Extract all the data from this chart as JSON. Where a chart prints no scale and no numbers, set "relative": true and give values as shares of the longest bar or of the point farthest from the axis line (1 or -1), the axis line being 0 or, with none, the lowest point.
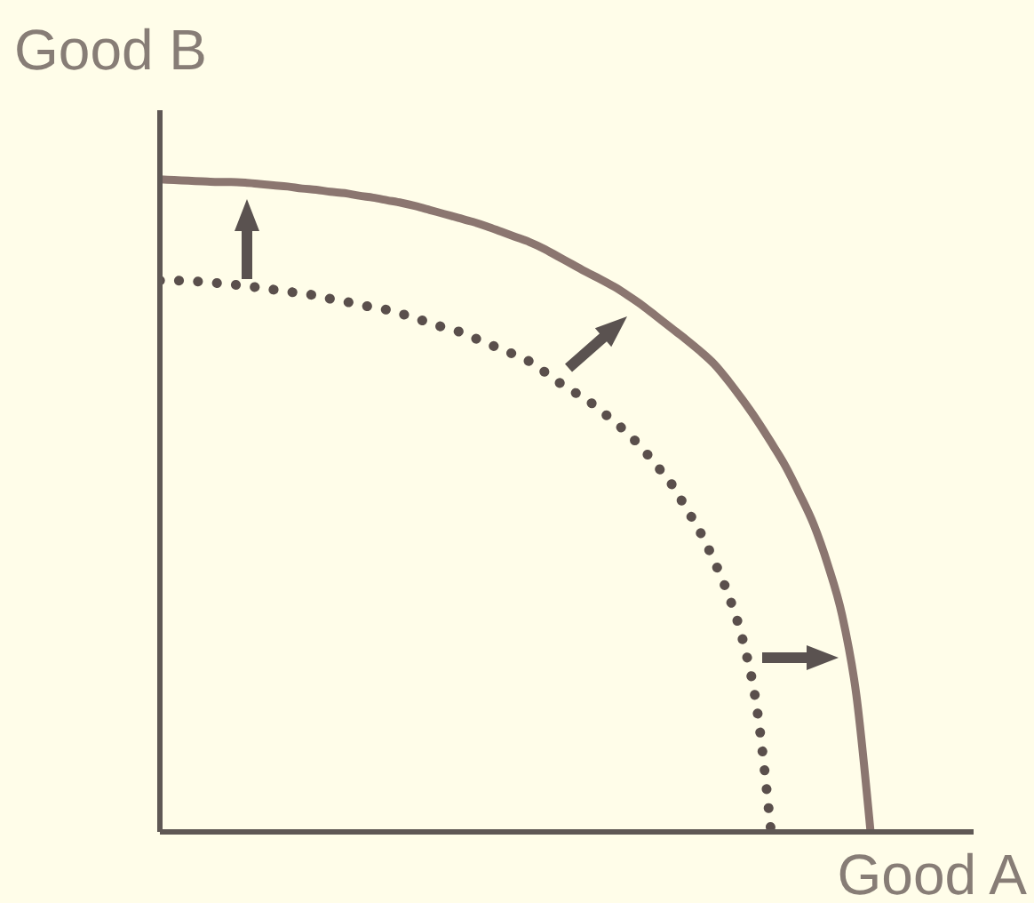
{
  "chart_data": {
    "type": "line",
    "xlabel": "Good A",
    "ylabel": "Good B",
    "relative": true,
    "categories": [
      null,
      null,
      null,
      null,
      null,
      null,
      null,
      null,
      null,
      null,
      null,
      null,
      null,
      null,
      null,
      null,
      null,
      null,
      null,
      null,
      null,
      null,
      null,
      null,
      null,
      null,
      null,
      null,
      null,
      null,
      null,
      null,
      null,
      null,
      null,
      null,
      null,
      null,
      null,
      null,
      null,
      null,
      null,
      null,
      null,
      null,
      null,
      null,
      null,
      null,
      null
    ],
    "series": [
      {
        "color": "#8b7670",
        "line_style": "solid",
        "values": [
          1,
          0.999,
          0.998,
          0.997,
          0.996,
          0.996,
          0.995,
          0.993,
          0.991,
          0.989,
          0.986,
          0.984,
          0.981,
          0.979,
          0.975,
          0.972,
          0.968,
          0.964,
          0.959,
          0.953,
          0.947,
          0.941,
          0.935,
          0.928,
          0.92,
          0.912,
          0.904,
          0.894,
          0.882,
          0.87,
          0.858,
          0.847,
          0.835,
          0.821,
          0.806,
          0.789,
          0.772,
          0.755,
          0.737,
          0.717,
          0.691,
          0.662,
          0.631,
          0.597,
          0.561,
          0.518,
          0.471,
          0.409,
          0.332,
          0.21,
          0
        ]
      },
      {
        "color": "#5a4f4c",
        "line_style": "dotted",
        "values": [
          0.845,
          0.845,
          0.844,
          0.843,
          0.841,
          0.839,
          0.837,
          0.834,
          0.831,
          0.828,
          0.825,
          0.822,
          0.817,
          0.813,
          0.808,
          0.804,
          0.8,
          0.794,
          0.787,
          0.78,
          0.773,
          0.767,
          0.758,
          0.749,
          0.74,
          0.731,
          0.721,
          0.706,
          0.69,
          0.676,
          0.663,
          0.646,
          0.628,
          0.609,
          0.586,
          0.56,
          0.533,
          0.497,
          0.46,
          0.415,
          0.363,
          0.295,
          0.19,
          0,
          null,
          null,
          null,
          null,
          null,
          null,
          null
        ]
      }
    ]
  }
}
